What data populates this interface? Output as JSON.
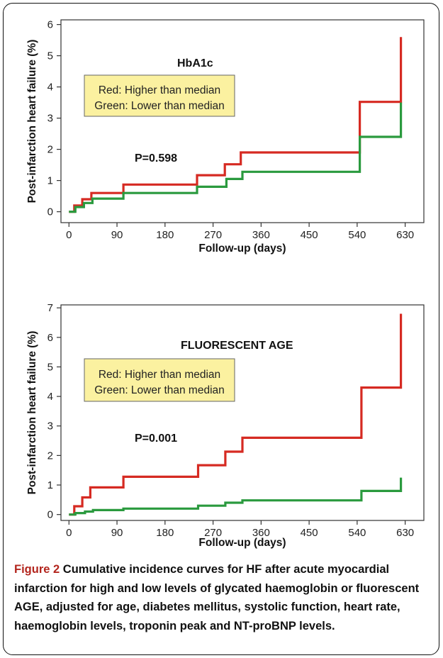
{
  "chart_data": [
    {
      "type": "line",
      "step": true,
      "title": "HbA1c",
      "xlabel": "Follow-up (days)",
      "ylabel": "Post-infarction heart failure (%)",
      "xlim": [
        -15,
        665
      ],
      "ylim": [
        -0.35,
        6.15
      ],
      "xticks": [
        0,
        90,
        180,
        270,
        360,
        450,
        540,
        630
      ],
      "yticks": [
        0,
        1,
        2,
        3,
        4,
        5,
        6
      ],
      "grid": false,
      "legend": {
        "placement": "upper-left",
        "lines": [
          "Red: Higher than median",
          "Green: Lower than median"
        ]
      },
      "annotation": "P=0.598",
      "series": [
        {
          "color": "#d62a22",
          "x": [
            0,
            10,
            25,
            42,
            102,
            240,
            292,
            322,
            545,
            622,
            622
          ],
          "y": [
            0,
            0.2,
            0.4,
            0.6,
            0.87,
            1.17,
            1.52,
            1.9,
            3.52,
            3.52,
            5.6
          ]
        },
        {
          "color": "#2a9a3e",
          "x": [
            0,
            12,
            28,
            44,
            102,
            240,
            295,
            325,
            545,
            622,
            622
          ],
          "y": [
            0,
            0.15,
            0.28,
            0.42,
            0.6,
            0.8,
            1.05,
            1.28,
            2.4,
            2.4,
            3.5
          ]
        }
      ]
    },
    {
      "type": "line",
      "step": true,
      "title": "FLUORESCENT AGE",
      "xlabel": "Follow-up (days)",
      "ylabel": "Post-infarction heart failure (%)",
      "xlim": [
        -15,
        665
      ],
      "ylim": [
        -0.2,
        7.1
      ],
      "xticks": [
        0,
        90,
        180,
        270,
        360,
        450,
        540,
        630
      ],
      "yticks": [
        0,
        1,
        2,
        3,
        4,
        5,
        6,
        7
      ],
      "grid": false,
      "legend": {
        "placement": "upper-left",
        "lines": [
          "Red: Higher than median",
          "Green: Lower than median"
        ]
      },
      "annotation": "P=0.001",
      "series": [
        {
          "color": "#d62a22",
          "x": [
            0,
            10,
            25,
            40,
            102,
            242,
            293,
            325,
            548,
            622,
            622
          ],
          "y": [
            0,
            0.28,
            0.58,
            0.92,
            1.28,
            1.67,
            2.13,
            2.6,
            4.3,
            4.3,
            6.8
          ]
        },
        {
          "color": "#2a9a3e",
          "x": [
            0,
            12,
            30,
            45,
            102,
            242,
            293,
            325,
            548,
            622,
            622
          ],
          "y": [
            0,
            0.05,
            0.1,
            0.15,
            0.2,
            0.3,
            0.4,
            0.48,
            0.8,
            0.8,
            1.25
          ]
        }
      ]
    }
  ],
  "caption": {
    "figure_number": "Figure 2",
    "text": "Cumulative incidence curves for HF after acute myocardial infarction for high and low levels of glycated haemoglobin or fluorescent AGE, adjusted for age, diabetes mellitus, systolic function, heart rate, haemoglobin levels, troponin peak and NT-proBNP levels."
  }
}
